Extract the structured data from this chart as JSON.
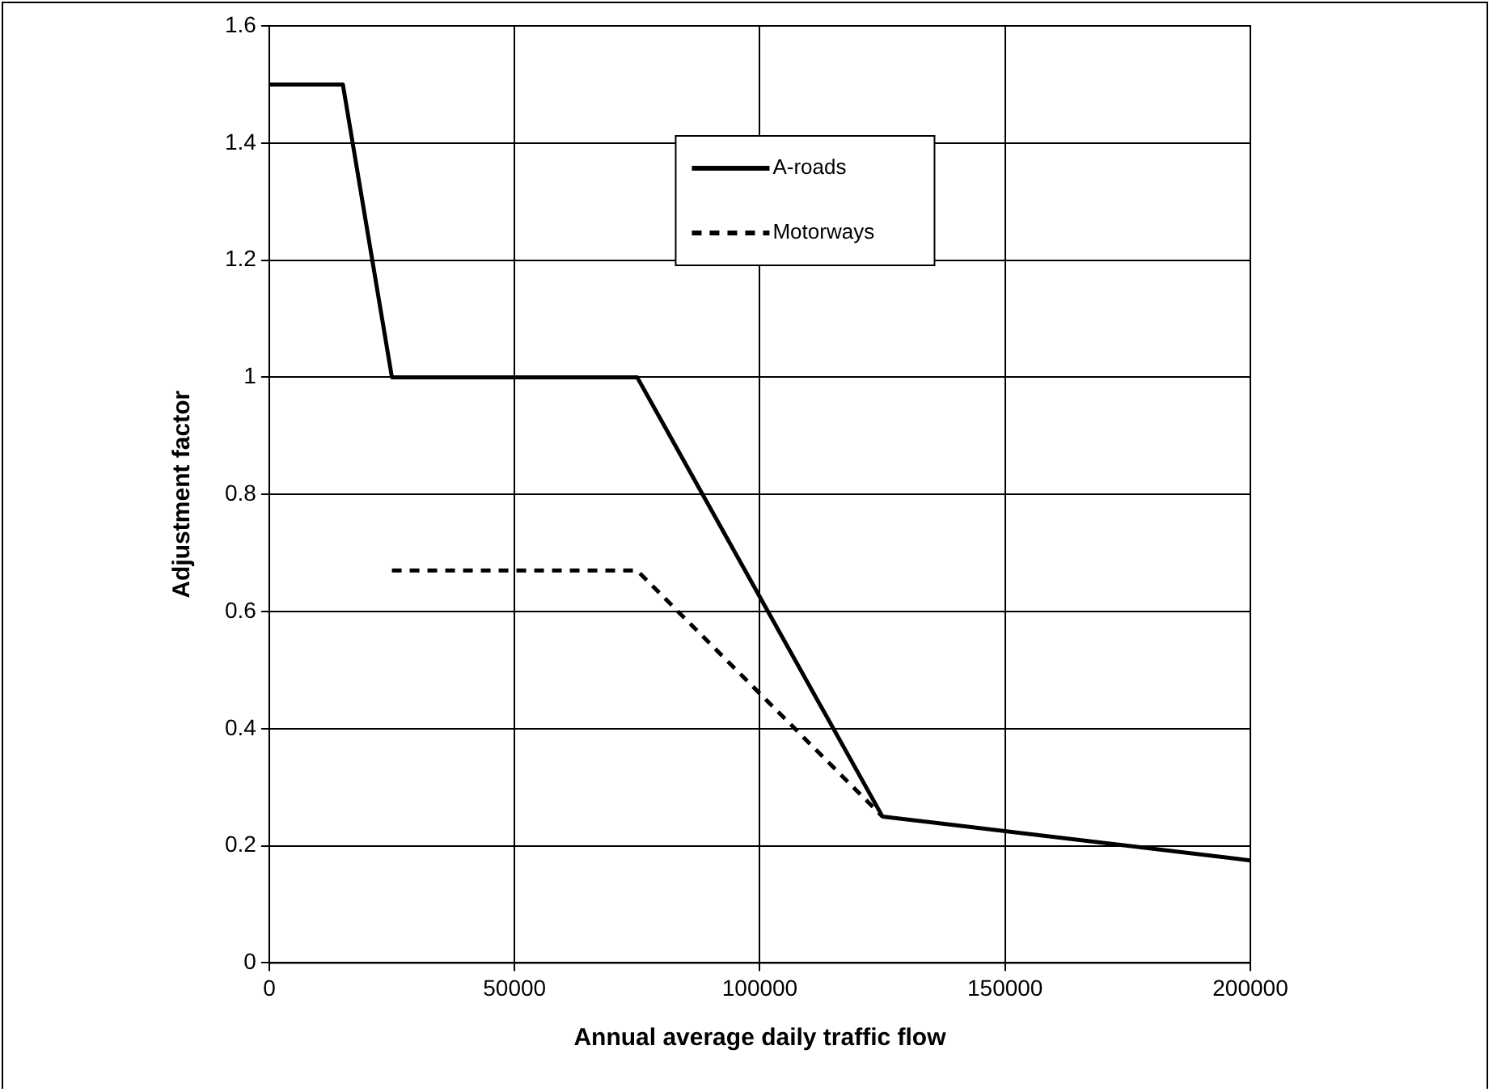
{
  "chart_data": {
    "type": "line",
    "xlabel": "Annual average daily traffic flow",
    "ylabel": "Adjustment factor",
    "xlim": [
      0,
      200000
    ],
    "xticks": [
      0,
      50000,
      100000,
      150000,
      200000
    ],
    "ylim": [
      0,
      1.6
    ],
    "yticks": [
      0,
      0.2,
      0.4,
      0.6,
      0.8,
      1,
      1.2,
      1.4,
      1.6
    ],
    "grid": true,
    "legend": "top",
    "marker": "none",
    "series": [
      {
        "name": "A-roads",
        "color": "#000000",
        "line_style": "solid",
        "x": [
          0,
          15000,
          25000,
          75000,
          125000,
          200000
        ],
        "values": [
          1.5,
          1.5,
          1,
          1,
          0.25,
          0.175
        ]
      },
      {
        "name": "Motorways",
        "color": "#000000",
        "line_style": "dashed",
        "x": [
          25000,
          75000,
          125000
        ],
        "values": [
          0.67,
          0.67,
          0.25
        ]
      }
    ]
  }
}
